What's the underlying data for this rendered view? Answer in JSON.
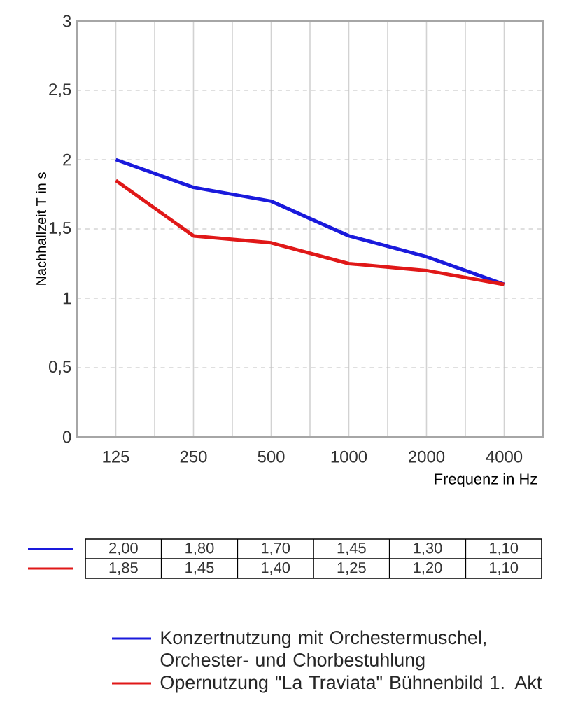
{
  "chart_data": {
    "type": "line",
    "ylabel": "Nachhallzeit T in s",
    "xlabel": "Frequenz in Hz",
    "categories": [
      "125",
      "250",
      "500",
      "1000",
      "2000",
      "4000"
    ],
    "series": [
      {
        "name": "Konzertnutzung mit Orchestermuschel, Orchester- und Chorbestuhlung",
        "color": "#1a1adc",
        "values": [
          2.0,
          1.8,
          1.7,
          1.45,
          1.3,
          1.1
        ],
        "value_labels": [
          "2,00",
          "1,80",
          "1,70",
          "1,45",
          "1,30",
          "1,10"
        ]
      },
      {
        "name": "Opernutzung \"La Traviata\" Bühnenbild 1. Akt",
        "color": "#e01818",
        "values": [
          1.85,
          1.45,
          1.4,
          1.25,
          1.2,
          1.1
        ],
        "value_labels": [
          "1,85",
          "1,45",
          "1,40",
          "1,25",
          "1,20",
          "1,10"
        ]
      }
    ],
    "ylim": [
      0,
      3
    ],
    "yticks": [
      0,
      {
        "value": 0.5,
        "label": "0,5"
      },
      1,
      {
        "value": 1.5,
        "label": "1,5"
      },
      2,
      {
        "value": 2.5,
        "label": "2,5"
      },
      3
    ],
    "grid": true,
    "legend": "bottom",
    "marker": "none",
    "line_style": "solid"
  }
}
